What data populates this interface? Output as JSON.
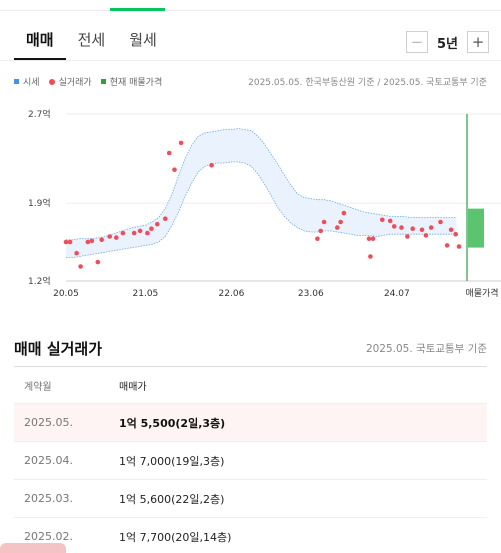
{
  "tabs": [
    {
      "label": "매매",
      "active": true
    },
    {
      "label": "전세",
      "active": false
    },
    {
      "label": "월세",
      "active": false
    }
  ],
  "period": {
    "value": "5년",
    "minus": "−",
    "plus": "+"
  },
  "legend": [
    {
      "label": "시세",
      "color": "#4a90e2",
      "shape": "square"
    },
    {
      "label": "실거래가",
      "color": "#ee4d5a",
      "shape": "dot"
    },
    {
      "label": "현재 매물가격",
      "color": "#2ea043",
      "shape": "square"
    }
  ],
  "chart_source": "2025.05.05. 한국부동산원 기준 / 2025.05. 국토교통부 기준",
  "chart_data": {
    "type": "area",
    "y_ticks": [
      "2.7억",
      "1.9억",
      "1.2억"
    ],
    "y_tick_values": [
      2.7,
      1.9,
      1.2
    ],
    "ylim": [
      1.2,
      2.7
    ],
    "x_ticks": [
      "20.05",
      "21.05",
      "22.06",
      "23.06",
      "24.07",
      "매물가격"
    ],
    "x_tick_months": [
      0,
      12,
      25,
      37,
      50
    ],
    "xlim_months": [
      0,
      60
    ],
    "range_series": {
      "name": "시세",
      "x_months": [
        0,
        1,
        2,
        3,
        4,
        5,
        6,
        7,
        8,
        9,
        10,
        11,
        12,
        13,
        14,
        15,
        16,
        17,
        18,
        19,
        20,
        21,
        22,
        23,
        24,
        25,
        26,
        27,
        28,
        29,
        30,
        31,
        32,
        33,
        34,
        35,
        36,
        37,
        38,
        39,
        40,
        41,
        42,
        43,
        44,
        45,
        46,
        47,
        48,
        49,
        50,
        51,
        52,
        53,
        54,
        55,
        56,
        57,
        58,
        59
      ],
      "upper": [
        1.57,
        1.57,
        1.58,
        1.58,
        1.58,
        1.59,
        1.6,
        1.62,
        1.64,
        1.66,
        1.68,
        1.69,
        1.7,
        1.73,
        1.77,
        1.85,
        1.98,
        2.14,
        2.3,
        2.42,
        2.5,
        2.53,
        2.54,
        2.55,
        2.56,
        2.56,
        2.57,
        2.56,
        2.55,
        2.5,
        2.43,
        2.34,
        2.25,
        2.15,
        2.06,
        1.98,
        1.95,
        1.94,
        1.93,
        1.93,
        1.92,
        1.9,
        1.88,
        1.86,
        1.84,
        1.82,
        1.81,
        1.8,
        1.79,
        1.78,
        1.78,
        1.78,
        1.77,
        1.77,
        1.77,
        1.77,
        1.77,
        1.77,
        1.77,
        1.77
      ],
      "lower": [
        1.41,
        1.41,
        1.42,
        1.43,
        1.44,
        1.45,
        1.46,
        1.47,
        1.48,
        1.49,
        1.5,
        1.51,
        1.52,
        1.53,
        1.55,
        1.6,
        1.7,
        1.82,
        1.96,
        2.08,
        2.18,
        2.23,
        2.25,
        2.26,
        2.26,
        2.27,
        2.27,
        2.26,
        2.23,
        2.16,
        2.07,
        1.97,
        1.86,
        1.78,
        1.72,
        1.68,
        1.65,
        1.64,
        1.64,
        1.65,
        1.65,
        1.64,
        1.63,
        1.62,
        1.61,
        1.61,
        1.61,
        1.6,
        1.61,
        1.62,
        1.62,
        1.62,
        1.62,
        1.62,
        1.62,
        1.62,
        1.62,
        1.62,
        1.62,
        1.62
      ]
    },
    "transactions": {
      "name": "실거래가",
      "points": [
        [
          0,
          1.55
        ],
        [
          0.6,
          1.55
        ],
        [
          1.6,
          1.45
        ],
        [
          2.2,
          1.33
        ],
        [
          3.3,
          1.55
        ],
        [
          3.9,
          1.56
        ],
        [
          4.8,
          1.37
        ],
        [
          5.4,
          1.57
        ],
        [
          6.6,
          1.6
        ],
        [
          7.6,
          1.59
        ],
        [
          8.6,
          1.63
        ],
        [
          10.3,
          1.63
        ],
        [
          11.2,
          1.65
        ],
        [
          12.3,
          1.63
        ],
        [
          12.9,
          1.67
        ],
        [
          13.8,
          1.71
        ],
        [
          15.0,
          1.76
        ],
        [
          15.6,
          2.35
        ],
        [
          16.4,
          2.2
        ],
        [
          17.4,
          2.44
        ],
        [
          22.0,
          2.24
        ],
        [
          38.0,
          1.58
        ],
        [
          38.5,
          1.65
        ],
        [
          39.0,
          1.73
        ],
        [
          41.0,
          1.68
        ],
        [
          41.5,
          1.73
        ],
        [
          42.0,
          1.81
        ],
        [
          45.8,
          1.58
        ],
        [
          46.0,
          1.42
        ],
        [
          46.4,
          1.58
        ],
        [
          47.8,
          1.75
        ],
        [
          49.0,
          1.74
        ],
        [
          49.6,
          1.69
        ],
        [
          50.7,
          1.68
        ],
        [
          51.6,
          1.6
        ],
        [
          52.4,
          1.67
        ],
        [
          53.8,
          1.66
        ],
        [
          54.4,
          1.61
        ],
        [
          55.2,
          1.68
        ],
        [
          56.6,
          1.73
        ],
        [
          57.6,
          1.52
        ],
        [
          58.2,
          1.66
        ],
        [
          58.9,
          1.62
        ],
        [
          59.4,
          1.51
        ]
      ]
    },
    "listing": {
      "name": "현재 매물가격",
      "low": 1.5,
      "high": 1.85
    }
  },
  "section": {
    "title": "매매 실거래가",
    "source": "2025.05. 국토교통부 기준",
    "headers": {
      "date": "계약월",
      "price": "매매가"
    },
    "rows": [
      {
        "date": "2025.05.",
        "price": "1억 5,500(2일,3층)",
        "highlight": true
      },
      {
        "date": "2025.04.",
        "price": "1억 7,000(19일,3층)",
        "highlight": false
      },
      {
        "date": "2025.03.",
        "price": "1억 5,600(22일,2층)",
        "highlight": false
      },
      {
        "date": "2025.02.",
        "price": "1억 7,700(20일,14층)",
        "highlight": false
      }
    ]
  }
}
